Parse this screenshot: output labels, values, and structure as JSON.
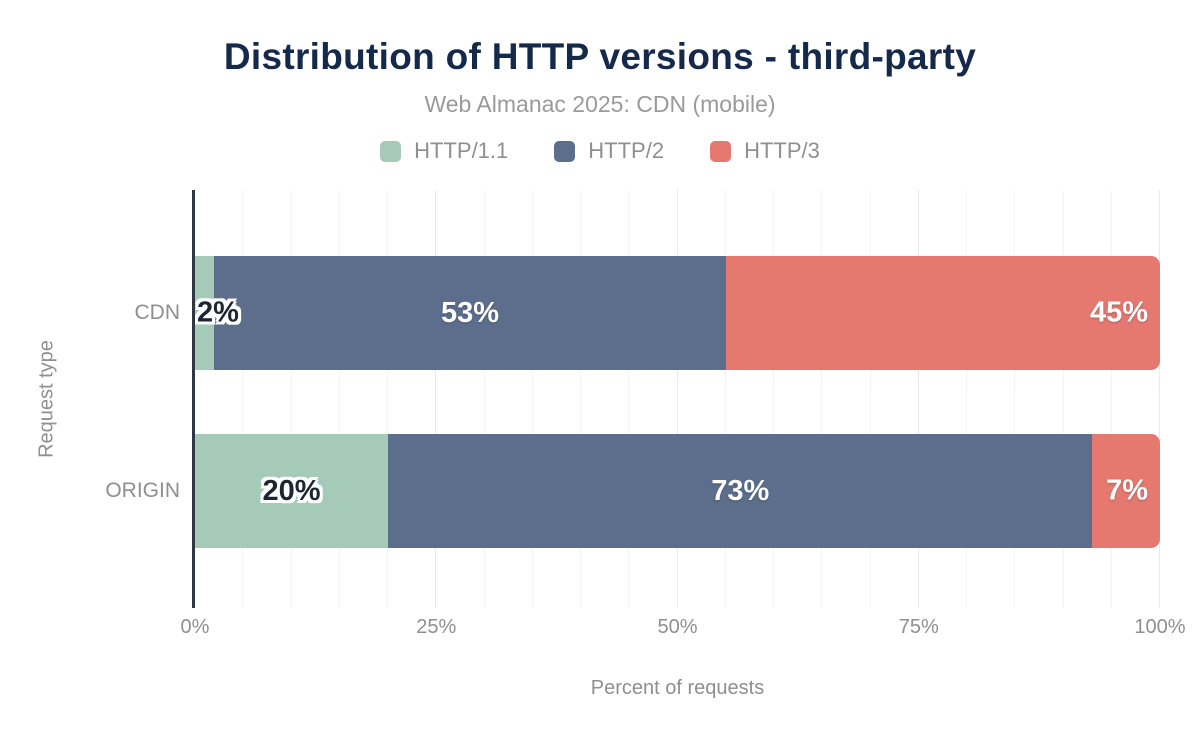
{
  "header": {
    "title": "Distribution of HTTP versions - third-party",
    "subtitle": "Web Almanac 2025: CDN (mobile)"
  },
  "colors": {
    "title_text": "#15294b",
    "muted_text": "#8f8f8f",
    "axis_line": "#2f3742",
    "gridline_minor": "#f4f4f4",
    "gridline_major": "#e9e9e9"
  },
  "chart_data": {
    "type": "bar",
    "stacked": true,
    "orientation": "horizontal",
    "title": "Distribution of HTTP versions - third-party",
    "subtitle": "Web Almanac 2025: CDN (mobile)",
    "categories": [
      "CDN",
      "ORIGIN"
    ],
    "series": [
      {
        "name": "HTTP/1.1",
        "color": "#a6cab8",
        "label_color": "#1c2530",
        "values": [
          2,
          20
        ]
      },
      {
        "name": "HTTP/2",
        "color": "#5c6e8c",
        "label_color": "#ffffff",
        "values": [
          53,
          73
        ]
      },
      {
        "name": "HTTP/3",
        "color": "#e5786f",
        "label_color": "#ffffff",
        "values": [
          45,
          7
        ]
      }
    ],
    "value_suffix": "%",
    "xlabel": "Percent of requests",
    "ylabel": "Request type",
    "xlim": [
      0,
      100
    ],
    "x_ticks": [
      {
        "label": "0%",
        "value": 0
      },
      {
        "label": "25%",
        "value": 25
      },
      {
        "label": "50%",
        "value": 50
      },
      {
        "label": "75%",
        "value": 75
      },
      {
        "label": "100%",
        "value": 100
      }
    ],
    "grid": "vertical gridlines, minor every 5, major every 25",
    "legend_position": "top-center"
  }
}
